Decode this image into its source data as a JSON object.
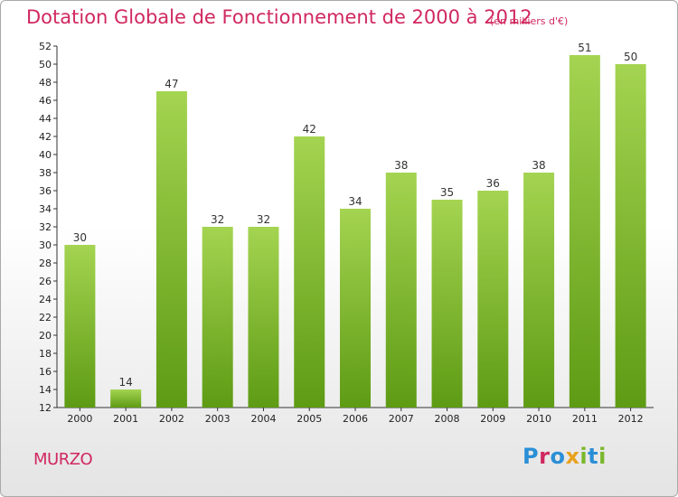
{
  "header": {
    "title": "Dotation Globale de Fonctionnement de 2000 à 2012",
    "unit": "(en milliers d'€)"
  },
  "footer": {
    "commune": "MURZO",
    "logo_text": "Proxiti"
  },
  "colors": {
    "title": "#d0285f",
    "bar_top": "#a4d451",
    "bar_bottom": "#5e9b14",
    "axis": "#333333"
  },
  "chart_data": {
    "type": "bar",
    "categories": [
      "2000",
      "2001",
      "2002",
      "2003",
      "2004",
      "2005",
      "2006",
      "2007",
      "2008",
      "2009",
      "2010",
      "2011",
      "2012"
    ],
    "values": [
      30,
      14,
      47,
      32,
      32,
      42,
      34,
      38,
      35,
      36,
      38,
      51,
      50
    ],
    "y_ticks": [
      12,
      14,
      16,
      18,
      20,
      22,
      24,
      26,
      28,
      30,
      32,
      34,
      36,
      38,
      40,
      42,
      44,
      46,
      48,
      50,
      52
    ],
    "ylim": [
      12,
      52
    ],
    "title": "Dotation Globale de Fonctionnement de 2000 à 2012",
    "xlabel": "",
    "ylabel": "",
    "grid": false,
    "data_labels": true
  }
}
